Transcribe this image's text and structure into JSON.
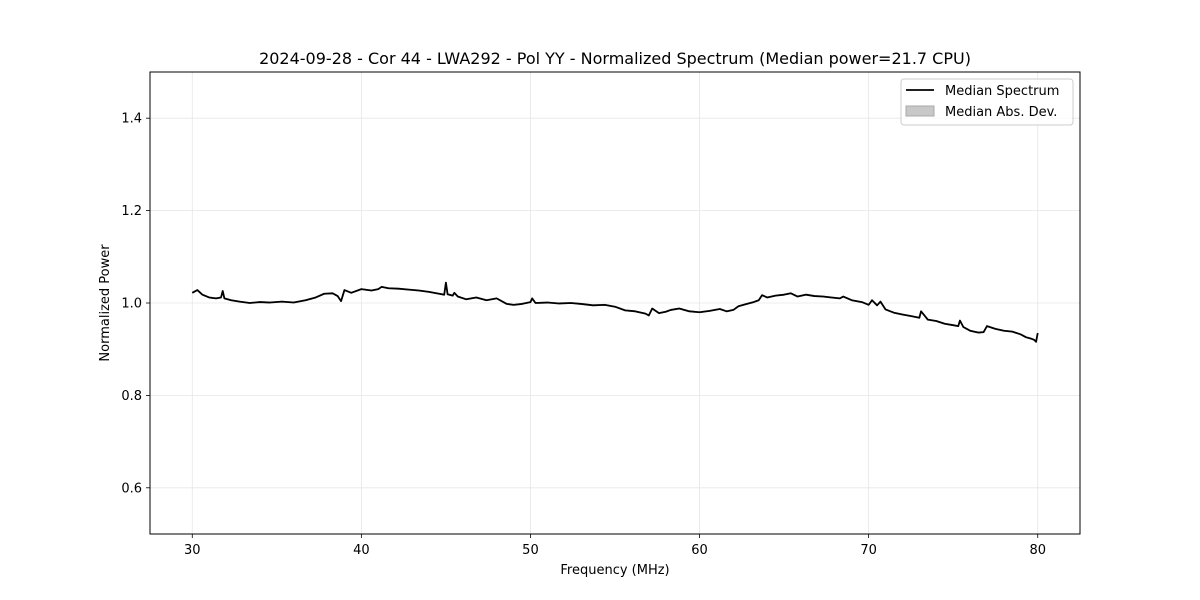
{
  "chart_data": {
    "type": "line",
    "title": "2024-09-28 - Cor 44 - LWA292 - Pol YY - Normalized Spectrum (Median power=21.7 CPU)",
    "xlabel": "Frequency (MHz)",
    "ylabel": "Normalized Power",
    "xlim": [
      27.5,
      82.5
    ],
    "ylim": [
      0.5,
      1.5
    ],
    "xticks": [
      30,
      40,
      50,
      60,
      70,
      80
    ],
    "yticks": [
      0.6,
      0.8,
      1.0,
      1.2,
      1.4
    ],
    "xtick_labels": [
      "30",
      "40",
      "50",
      "60",
      "70",
      "80"
    ],
    "ytick_labels": [
      "0.6",
      "0.8",
      "1.0",
      "1.2",
      "1.4"
    ],
    "grid": true,
    "legend_position": "top-right",
    "legend": [
      {
        "label": "Median Spectrum",
        "kind": "line",
        "color": "#000000"
      },
      {
        "label": "Median Abs. Dev.",
        "kind": "patch",
        "color": "#c8c8c8"
      }
    ],
    "series": [
      {
        "name": "Median Spectrum",
        "color": "#000000",
        "x": [
          30.0,
          30.3,
          30.6,
          31.0,
          31.4,
          31.7,
          31.8,
          31.9,
          32.3,
          32.8,
          33.4,
          34.0,
          34.6,
          35.3,
          36.0,
          36.7,
          37.3,
          37.8,
          38.3,
          38.6,
          38.8,
          39.0,
          39.4,
          40.0,
          40.6,
          41.0,
          41.2,
          41.6,
          42.2,
          42.8,
          43.4,
          44.0,
          44.6,
          44.9,
          45.0,
          45.1,
          45.4,
          45.5,
          45.7,
          46.2,
          46.8,
          47.4,
          48.0,
          48.6,
          49.0,
          49.5,
          50.0,
          50.1,
          50.3,
          51.0,
          51.7,
          52.4,
          53.0,
          53.7,
          54.4,
          55.0,
          55.6,
          56.2,
          56.8,
          57.0,
          57.2,
          57.6,
          58.0,
          58.3,
          58.8,
          59.4,
          60.0,
          60.6,
          61.2,
          61.6,
          62.0,
          62.3,
          62.8,
          63.2,
          63.5,
          63.7,
          64.0,
          64.5,
          65.0,
          65.4,
          65.8,
          66.3,
          66.8,
          67.3,
          67.8,
          68.3,
          68.5,
          69.0,
          69.6,
          70.0,
          70.2,
          70.5,
          70.7,
          71.0,
          71.5,
          72.0,
          72.6,
          73.0,
          73.1,
          73.5,
          74.0,
          74.5,
          75.0,
          75.3,
          75.4,
          75.6,
          76.0,
          76.5,
          76.8,
          77.0,
          77.5,
          78.0,
          78.5,
          79.0,
          79.3,
          79.6,
          79.8,
          79.9,
          80.0
        ],
        "y": [
          1.022,
          1.028,
          1.018,
          1.012,
          1.01,
          1.012,
          1.026,
          1.01,
          1.006,
          1.003,
          1.0,
          1.002,
          1.001,
          1.003,
          1.001,
          1.006,
          1.012,
          1.02,
          1.021,
          1.015,
          1.004,
          1.028,
          1.022,
          1.03,
          1.027,
          1.03,
          1.035,
          1.032,
          1.031,
          1.029,
          1.027,
          1.024,
          1.02,
          1.018,
          1.044,
          1.019,
          1.016,
          1.022,
          1.014,
          1.008,
          1.012,
          1.006,
          1.01,
          0.998,
          0.996,
          0.998,
          1.002,
          1.01,
          1.0,
          1.001,
          0.999,
          1.0,
          0.998,
          0.995,
          0.996,
          0.992,
          0.984,
          0.982,
          0.977,
          0.973,
          0.988,
          0.978,
          0.981,
          0.985,
          0.988,
          0.982,
          0.98,
          0.983,
          0.987,
          0.982,
          0.985,
          0.993,
          0.998,
          1.002,
          1.006,
          1.017,
          1.012,
          1.016,
          1.018,
          1.021,
          1.014,
          1.018,
          1.015,
          1.014,
          1.012,
          1.01,
          1.014,
          1.006,
          1.002,
          0.996,
          1.006,
          0.995,
          1.003,
          0.986,
          0.979,
          0.975,
          0.971,
          0.968,
          0.982,
          0.964,
          0.961,
          0.955,
          0.952,
          0.95,
          0.962,
          0.948,
          0.94,
          0.936,
          0.937,
          0.95,
          0.944,
          0.94,
          0.938,
          0.932,
          0.926,
          0.923,
          0.92,
          0.916,
          0.935
        ]
      }
    ],
    "band": {
      "name": "Median Abs. Dev.",
      "color": "#c8c8c8",
      "half_width": 0.002
    }
  }
}
